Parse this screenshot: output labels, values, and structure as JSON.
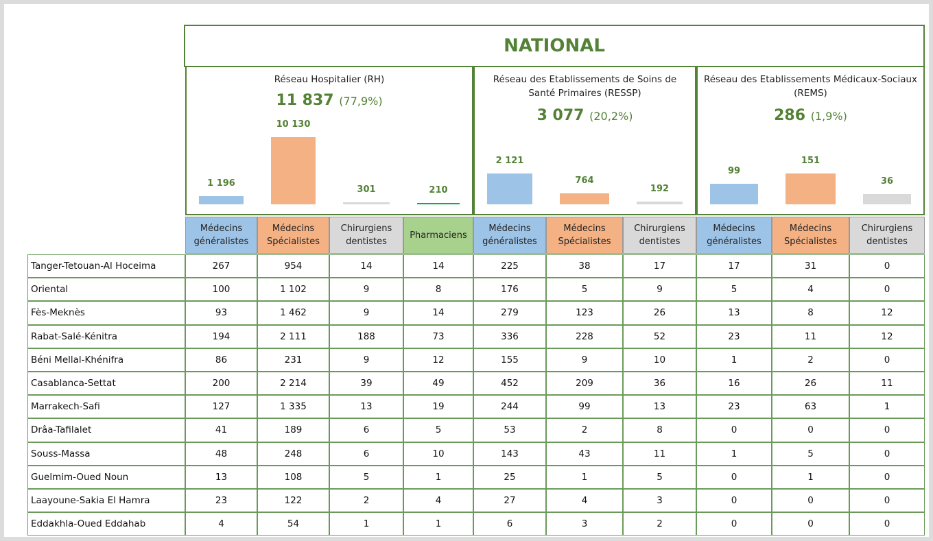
{
  "title": "NATIONAL",
  "sections": [
    {
      "name": "Réseau Hospitalier (RH)",
      "total": "11 837",
      "share": "(77,9%)",
      "values": [
        1196,
        10130,
        301,
        210
      ],
      "value_labels": [
        "1 196",
        "10 130",
        "301",
        "210"
      ],
      "colors": [
        "#9dc3e6",
        "#f4b183",
        "#d9d9d9",
        "#00b050"
      ]
    },
    {
      "name": "Réseau des Etablissements de Soins de Santé Primaires (RESSP)",
      "total": "3 077",
      "share": "(20,2%)",
      "values": [
        2121,
        764,
        192
      ],
      "value_labels": [
        "2 121",
        "764",
        "192"
      ],
      "colors": [
        "#9dc3e6",
        "#f4b183",
        "#d9d9d9"
      ]
    },
    {
      "name": "Réseau des Etablissements Médicaux-Sociaux (REMS)",
      "total": "286",
      "share": "(1,9%)",
      "values": [
        99,
        151,
        36
      ],
      "value_labels": [
        "99",
        "151",
        "36"
      ],
      "colors": [
        "#9dc3e6",
        "#f4b183",
        "#d9d9d9"
      ]
    }
  ],
  "columns": [
    {
      "label": "Médecins généralistes",
      "color": "#9dc3e6"
    },
    {
      "label": "Médecins Spécialistes",
      "color": "#f4b183"
    },
    {
      "label": "Chirurgiens dentistes",
      "color": "#d9d9d9"
    },
    {
      "label": "Pharmaciens",
      "color": "#a9d18e"
    },
    {
      "label": "Médecins généralistes",
      "color": "#9dc3e6"
    },
    {
      "label": "Médecins Spécialistes",
      "color": "#f4b183"
    },
    {
      "label": "Chirurgiens dentistes",
      "color": "#d9d9d9"
    },
    {
      "label": "Médecins généralistes",
      "color": "#9dc3e6"
    },
    {
      "label": "Médecins Spécialistes",
      "color": "#f4b183"
    },
    {
      "label": "Chirurgiens dentistes",
      "color": "#d9d9d9"
    }
  ],
  "rows": [
    {
      "region": "Tanger-Tetouan-Al Hoceima",
      "cells": [
        "267",
        "954",
        "14",
        "14",
        "225",
        "38",
        "17",
        "17",
        "31",
        "0"
      ]
    },
    {
      "region": "Oriental",
      "cells": [
        "100",
        "1 102",
        "9",
        "8",
        "176",
        "5",
        "9",
        "5",
        "4",
        "0"
      ]
    },
    {
      "region": "Fès-Meknès",
      "cells": [
        "93",
        "1 462",
        "9",
        "14",
        "279",
        "123",
        "26",
        "13",
        "8",
        "12"
      ]
    },
    {
      "region": "Rabat-Salé-Kénitra",
      "cells": [
        "194",
        "2 111",
        "188",
        "73",
        "336",
        "228",
        "52",
        "23",
        "11",
        "12"
      ]
    },
    {
      "region": "Béni Mellal-Khénifra",
      "cells": [
        "86",
        "231",
        "9",
        "12",
        "155",
        "9",
        "10",
        "1",
        "2",
        "0"
      ]
    },
    {
      "region": "Casablanca-Settat",
      "cells": [
        "200",
        "2 214",
        "39",
        "49",
        "452",
        "209",
        "36",
        "16",
        "26",
        "11"
      ]
    },
    {
      "region": "Marrakech-Safi",
      "cells": [
        "127",
        "1 335",
        "13",
        "19",
        "244",
        "99",
        "13",
        "23",
        "63",
        "1"
      ]
    },
    {
      "region": "Drâa-Tafilalet",
      "cells": [
        "41",
        "189",
        "6",
        "5",
        "53",
        "2",
        "8",
        "0",
        "0",
        "0"
      ]
    },
    {
      "region": "Souss-Massa",
      "cells": [
        "48",
        "248",
        "6",
        "10",
        "143",
        "43",
        "11",
        "1",
        "5",
        "0"
      ]
    },
    {
      "region": "Guelmim-Oued Noun",
      "cells": [
        "13",
        "108",
        "5",
        "1",
        "25",
        "1",
        "5",
        "0",
        "1",
        "0"
      ]
    },
    {
      "region": "Laayoune-Sakia El Hamra",
      "cells": [
        "23",
        "122",
        "2",
        "4",
        "27",
        "4",
        "3",
        "0",
        "0",
        "0"
      ]
    },
    {
      "region": "Eddakhla-Oued Eddahab",
      "cells": [
        "4",
        "54",
        "1",
        "1",
        "6",
        "3",
        "2",
        "0",
        "0",
        "0"
      ]
    }
  ]
}
